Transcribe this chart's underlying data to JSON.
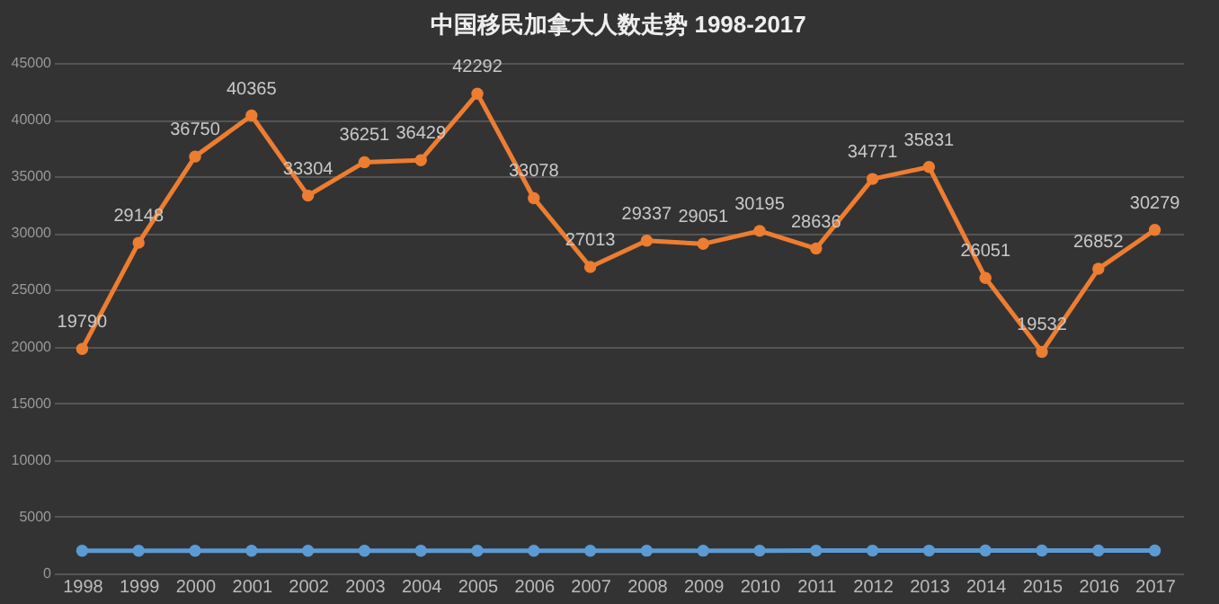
{
  "chart_data": {
    "type": "line",
    "title": "中国移民加拿大人数走势 1998-2017",
    "categories": [
      "1998",
      "1999",
      "2000",
      "2001",
      "2002",
      "2003",
      "2004",
      "2005",
      "2006",
      "2007",
      "2008",
      "2009",
      "2010",
      "2011",
      "2012",
      "2013",
      "2014",
      "2015",
      "2016",
      "2017"
    ],
    "series": [
      {
        "color": "#5b9bd5",
        "values": [
          1998,
          1999,
          2000,
          2001,
          2002,
          2003,
          2004,
          2005,
          2006,
          2007,
          2008,
          2009,
          2010,
          2011,
          2012,
          2013,
          2014,
          2015,
          2016,
          2017
        ]
      },
      {
        "color": "#ed7d31",
        "values": [
          19790,
          29148,
          36750,
          40365,
          33304,
          36251,
          36429,
          42292,
          33078,
          27013,
          29337,
          29051,
          30195,
          28636,
          34771,
          35831,
          26051,
          19532,
          26852,
          30279
        ],
        "value_labels": [
          "19790",
          "29148",
          "36750",
          "40365",
          "33304",
          "36251",
          "36429",
          "42292",
          "33078",
          "27013",
          "29337",
          "29051",
          "30195",
          "28636",
          "34771",
          "35831",
          "26051",
          "19532",
          "26852",
          "30279"
        ]
      }
    ],
    "ylim": [
      0,
      45000
    ],
    "yticks": [
      0,
      5000,
      10000,
      15000,
      20000,
      25000,
      30000,
      35000,
      40000,
      45000
    ],
    "grid": "y",
    "marker": "circle",
    "line_style": "solid"
  }
}
